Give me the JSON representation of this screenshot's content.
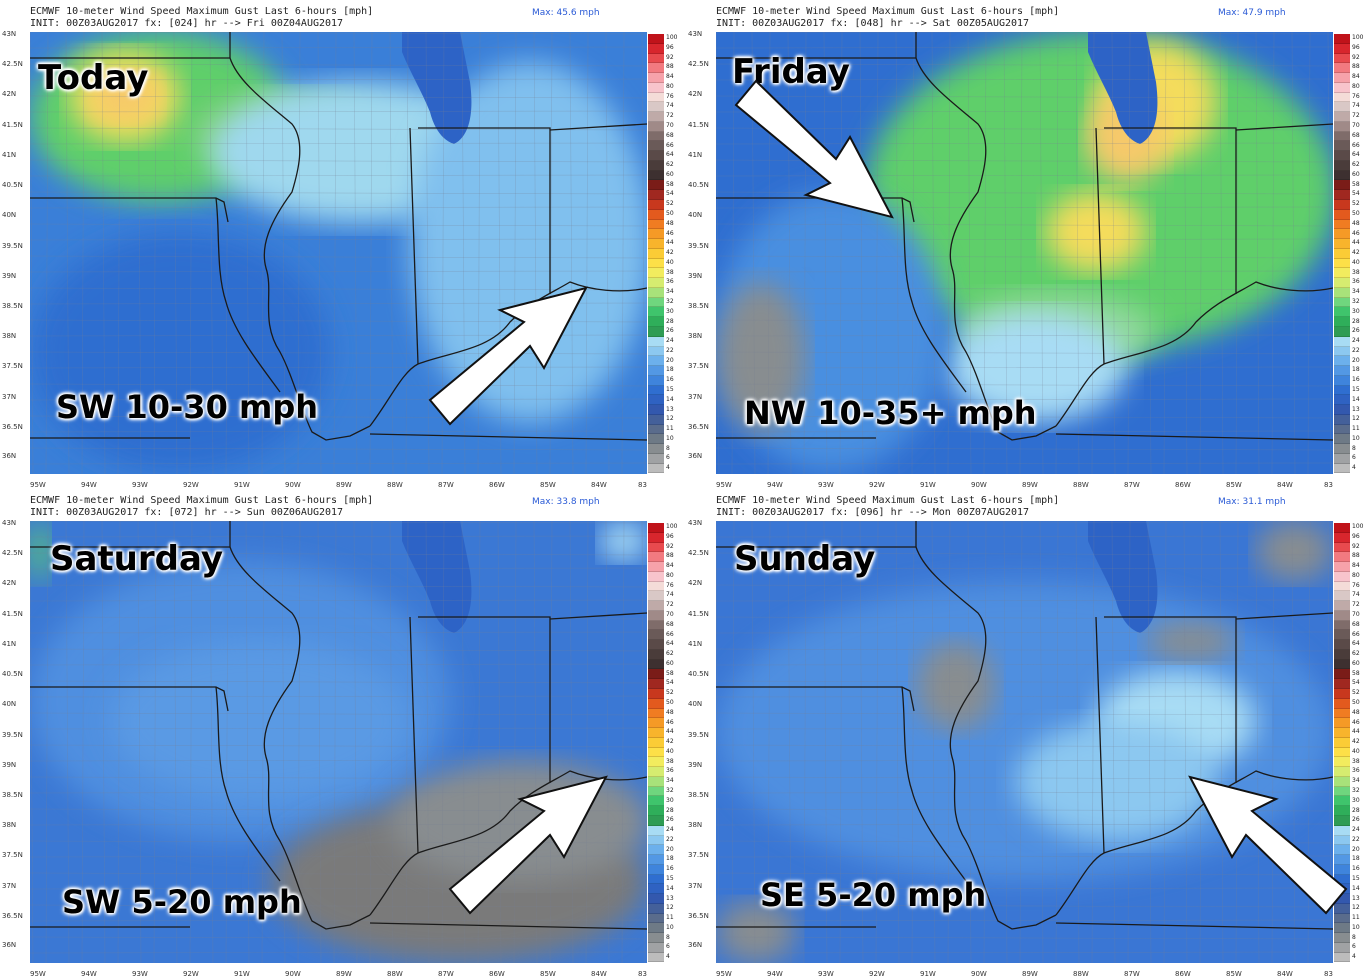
{
  "panels": [
    {
      "line1": "ECMWF 10-meter Wind Speed Maximum Gust Last 6-hours [mph]",
      "line2": "INIT: 00Z03AUG2017 fx: [024] hr --> Fri 00Z04AUG2017",
      "max": "Max: 45.6 mph",
      "day": "Today",
      "wind": "SW 10-30 mph"
    },
    {
      "line1": "ECMWF 10-meter Wind Speed Maximum Gust Last 6-hours [mph]",
      "line2": "INIT: 00Z03AUG2017 fx: [048] hr --> Sat 00Z05AUG2017",
      "max": "Max: 47.9 mph",
      "day": "Friday",
      "wind": "NW 10-35+ mph"
    },
    {
      "line1": "ECMWF 10-meter Wind Speed Maximum Gust Last 6-hours [mph]",
      "line2": "INIT: 00Z03AUG2017 fx: [072] hr --> Sun 00Z06AUG2017",
      "max": "Max: 33.8 mph",
      "day": "Saturday",
      "wind": "SW 5-20 mph"
    },
    {
      "line1": "ECMWF 10-meter Wind Speed Maximum Gust Last 6-hours [mph]",
      "line2": "INIT: 00Z03AUG2017 fx: [096] hr --> Mon 00Z07AUG2017",
      "max": "Max: 31.1 mph",
      "day": "Sunday",
      "wind": "SE 5-20 mph"
    }
  ],
  "lat_labels": [
    "43N",
    "42.5N",
    "42N",
    "41.5N",
    "41N",
    "40.5N",
    "40N",
    "39.5N",
    "39N",
    "38.5N",
    "38N",
    "37.5N",
    "37N",
    "36.5N",
    "36N"
  ],
  "lon_labels": [
    "95W",
    "94W",
    "93W",
    "92W",
    "91W",
    "90W",
    "89W",
    "88W",
    "87W",
    "86W",
    "85W",
    "84W",
    "83"
  ],
  "colorbar": {
    "ticks": [
      "100",
      "96",
      "92",
      "88",
      "84",
      "80",
      "76",
      "74",
      "72",
      "70",
      "68",
      "66",
      "64",
      "62",
      "60",
      "58",
      "54",
      "52",
      "50",
      "48",
      "46",
      "44",
      "42",
      "40",
      "38",
      "36",
      "34",
      "32",
      "30",
      "28",
      "26",
      "24",
      "22",
      "20",
      "18",
      "16",
      "15",
      "14",
      "13",
      "12",
      "11",
      "10",
      "8",
      "6",
      "4"
    ],
    "colors": [
      "#c0131a",
      "#d8262d",
      "#e84a4e",
      "#f27a80",
      "#f6a2aa",
      "#f8c4cc",
      "#f4dcd8",
      "#d9c8c6",
      "#bfaaa8",
      "#a08a88",
      "#7f6c6a",
      "#6a5a58",
      "#5a4a48",
      "#4a3c3a",
      "#3d3030",
      "#7a1c18",
      "#a02820",
      "#c8381e",
      "#e35a1e",
      "#f07c22",
      "#f59a26",
      "#f8b42c",
      "#fbcc36",
      "#fde048",
      "#f2ec5e",
      "#d6ec70",
      "#a8e27a",
      "#6fd67e",
      "#3fc46c",
      "#2fae5a",
      "#2f9c54",
      "#a8dcf4",
      "#8cc8f0",
      "#6cb0ec",
      "#5398e4",
      "#3f84dc",
      "#2f6ed0",
      "#2f62c2",
      "#3358ae",
      "#44609a",
      "#5a6c8c",
      "#6e7a86",
      "#888d90",
      "#a0a2a4",
      "#bcbcbc"
    ]
  }
}
